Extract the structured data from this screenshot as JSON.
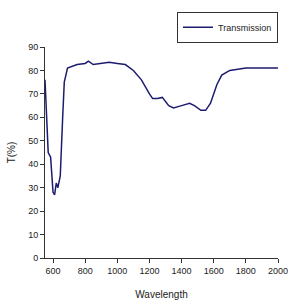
{
  "chart_data": {
    "type": "line",
    "x_label": "Wavelength",
    "y_label": "T(%)",
    "series": [
      {
        "name": "Transmission",
        "color": "#1c1c6e",
        "x": [
          550,
          570,
          585,
          600,
          610,
          620,
          630,
          645,
          660,
          670,
          690,
          750,
          800,
          820,
          850,
          900,
          950,
          1000,
          1050,
          1100,
          1150,
          1200,
          1220,
          1250,
          1280,
          1320,
          1350,
          1400,
          1450,
          1480,
          1520,
          1550,
          1580,
          1620,
          1650,
          1700,
          1800,
          1900,
          2000
        ],
        "values": [
          76,
          45,
          43,
          28,
          27,
          32,
          30,
          35,
          60,
          75,
          81,
          82.5,
          83,
          84,
          82.5,
          83,
          83.5,
          83,
          82.5,
          80,
          76,
          70,
          68,
          68,
          68.5,
          65,
          64,
          65,
          66,
          65,
          63,
          63,
          66,
          74,
          78,
          80,
          81,
          81,
          81
        ]
      }
    ],
    "xlim": [
      550,
      2000
    ],
    "xticks": [
      600,
      800,
      1000,
      1200,
      1400,
      1600,
      1800,
      2000
    ],
    "ylim": [
      0,
      90
    ],
    "yticks": [
      0,
      10,
      20,
      30,
      40,
      50,
      60,
      70,
      80,
      90
    ],
    "grid": false,
    "legend": "top right"
  }
}
